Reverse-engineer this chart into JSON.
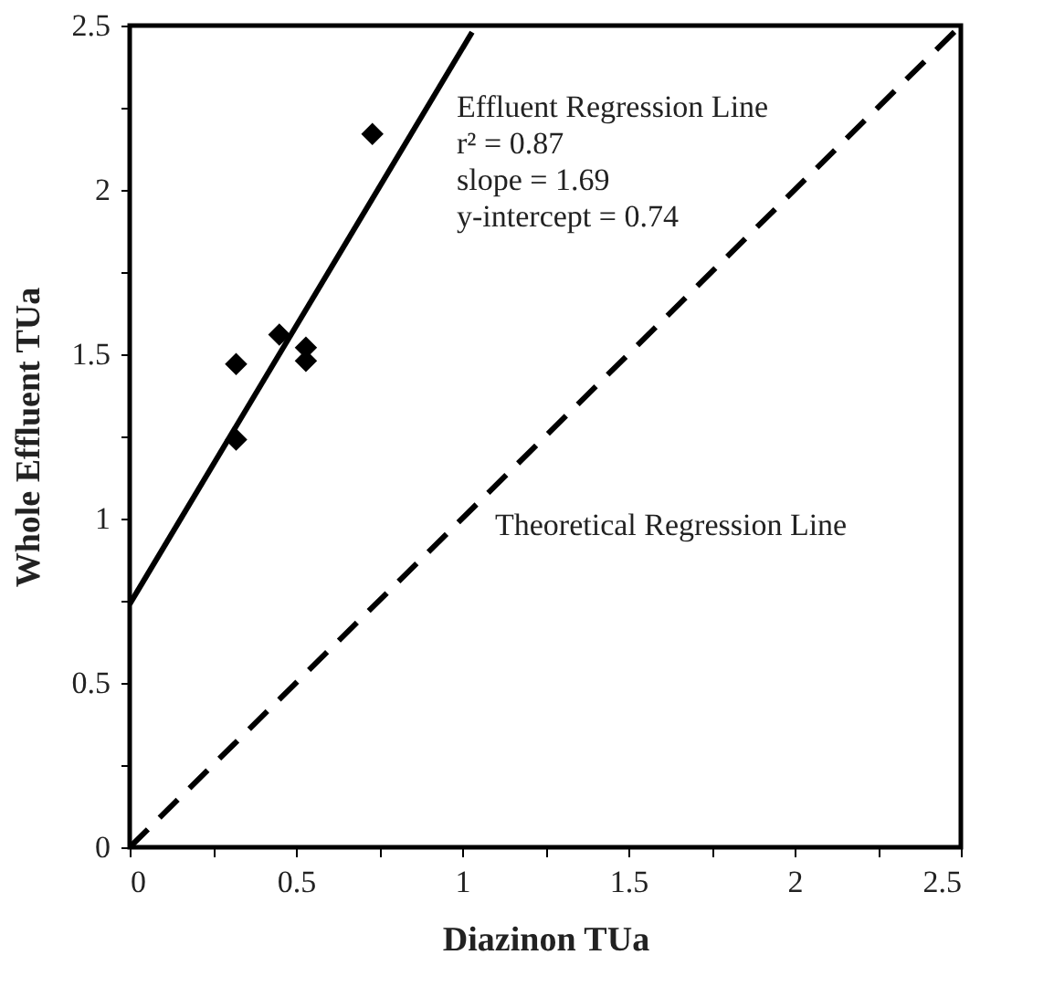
{
  "chart_data": {
    "type": "scatter",
    "xlabel": "Diazinon TUa",
    "ylabel": "Whole Effluent TUa",
    "xlim": [
      0,
      2.5
    ],
    "ylim": [
      0,
      2.5
    ],
    "xticks": [
      0,
      {
        "value": 0.25,
        "label": null
      },
      0.5,
      {
        "value": 0.75,
        "label": null
      },
      1,
      {
        "value": 1.25,
        "label": null
      },
      1.5,
      {
        "value": 1.75,
        "label": null
      },
      2,
      {
        "value": 2.25,
        "label": null
      },
      2.5
    ],
    "yticks": [
      0,
      {
        "value": 0.25,
        "label": null
      },
      0.5,
      {
        "value": 0.75,
        "label": null
      },
      1,
      {
        "value": 1.25,
        "label": null
      },
      1.5,
      {
        "value": 1.75,
        "label": null
      },
      2,
      {
        "value": 2.25,
        "label": null
      },
      2.5
    ],
    "grid": false,
    "series": [
      {
        "marker": "diamond",
        "color": "#000000",
        "x": [
          0.32,
          0.32,
          0.45,
          0.53,
          0.53,
          0.73
        ],
        "values": [
          1.47,
          1.24,
          1.56,
          1.52,
          1.48,
          2.17
        ]
      },
      {
        "type": "line",
        "line_style": "solid",
        "color": "#000000",
        "x": [
          0,
          1.03
        ],
        "values": [
          0.74,
          2.48
        ]
      },
      {
        "type": "line",
        "line_style": "dashed",
        "color": "#000000",
        "x": [
          0,
          2.5
        ],
        "values": [
          0,
          2.5
        ]
      }
    ],
    "annotations": [
      "Effluent Regression Line",
      "r² = 0.87",
      "slope = 1.69",
      "y-intercept = 0.74",
      "Theoretical Regression Line"
    ]
  }
}
